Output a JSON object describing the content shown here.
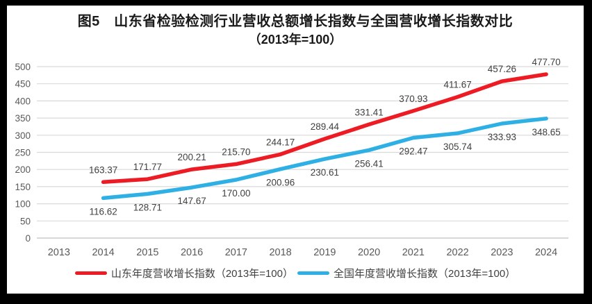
{
  "title": {
    "line1": "图5　山东省检验检测行业营收总额增长指数与全国营收增长指数对比",
    "line2": "（2013年=100）"
  },
  "chart_data": {
    "type": "line",
    "title": "图5 山东省检验检测行业营收总额增长指数与全国营收增长指数对比（2013年=100）",
    "categories": [
      "2013",
      "2014",
      "2015",
      "2016",
      "2017",
      "2018",
      "2019",
      "2020",
      "2021",
      "2022",
      "2023",
      "2024"
    ],
    "series": [
      {
        "name": "山东年度营收增长指数（2013年=100）",
        "color": "#ED1C24",
        "label_position": "above",
        "values": [
          null,
          163.37,
          171.77,
          200.21,
          215.7,
          244.17,
          289.44,
          331.41,
          370.93,
          411.67,
          457.26,
          477.7
        ]
      },
      {
        "name": "全国年度营收增长指数（2013年=100）",
        "color": "#2FB0E4",
        "label_position": "below",
        "values": [
          null,
          116.62,
          128.71,
          147.67,
          170.0,
          200.96,
          230.61,
          256.41,
          292.47,
          305.74,
          333.93,
          348.65
        ]
      }
    ],
    "xlabel": "",
    "ylabel": "",
    "ylim": [
      0,
      500
    ],
    "ytick_step": 50,
    "grid": true,
    "gridline_color": "#D9D9D9",
    "axis_line_color": "#BFBFBF",
    "legend_position": "bottom",
    "value_decimals": 2
  }
}
